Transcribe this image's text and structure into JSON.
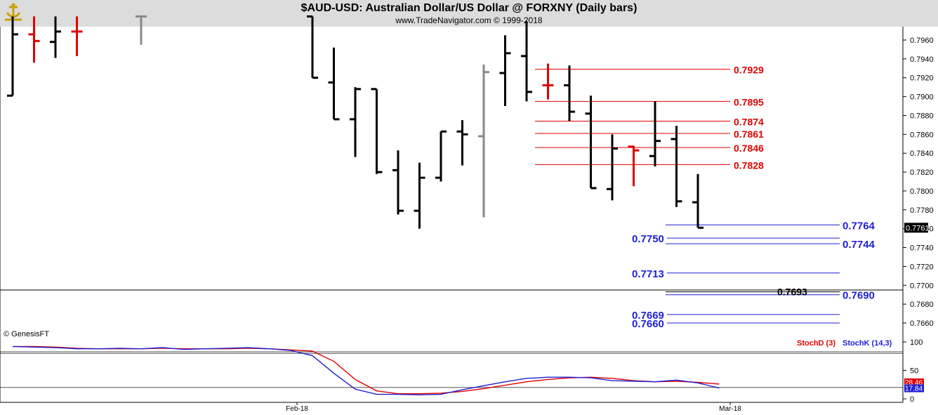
{
  "header": {
    "title": "$AUD-USD:  Australian Dollar/US Dollar @ FORXNY  (Daily bars)",
    "subtitle": "www.TradeNavigator.com © 1999-2018"
  },
  "chart_data": [
    {
      "type": "ohlc",
      "title": "$AUD-USD:  Australian Dollar/US Dollar @ FORXNY  (Daily bars)",
      "ylim": [
        0.7645,
        0.798
      ],
      "y_ticks": [
        "0.7960",
        "0.7940",
        "0.7920",
        "0.7900",
        "0.7880",
        "0.7860",
        "0.7840",
        "0.7820",
        "0.7800",
        "0.7780",
        "0.7760",
        "0.7740",
        "0.7720",
        "0.7700",
        "0.7680",
        "0.7660"
      ],
      "x_ticks": [
        "Feb-18",
        "Mar-18"
      ],
      "last_price": "0.7761",
      "bars": [
        {
          "i": 0,
          "h": 0.7985,
          "l": 0.7901,
          "o": 0.7901,
          "c": 0.7966,
          "color": "#000000"
        },
        {
          "i": 1,
          "h": 0.7985,
          "l": 0.7936,
          "o": 0.7966,
          "c": 0.7959,
          "color": "#e00000"
        },
        {
          "i": 2,
          "h": 0.7985,
          "l": 0.7941,
          "o": 0.7958,
          "c": 0.7969,
          "color": "#000000"
        },
        {
          "i": 3,
          "h": 0.7985,
          "l": 0.7943,
          "o": 0.7969,
          "c": 0.7969,
          "color": "#e00000"
        },
        {
          "i": 6,
          "h": 0.7985,
          "l": 0.7955,
          "o": 0.7985,
          "c": 0.7985,
          "color": "#888888"
        },
        {
          "i": 14,
          "h": 0.7985,
          "l": 0.792,
          "o": 0.7985,
          "c": 0.792,
          "color": "#000000"
        },
        {
          "i": 15,
          "h": 0.7952,
          "l": 0.7876,
          "o": 0.7915,
          "c": 0.7876,
          "color": "#000000"
        },
        {
          "i": 16,
          "h": 0.791,
          "l": 0.7836,
          "o": 0.7876,
          "c": 0.7908,
          "color": "#000000"
        },
        {
          "i": 17,
          "h": 0.7908,
          "l": 0.7818,
          "o": 0.7908,
          "c": 0.782,
          "color": "#000000"
        },
        {
          "i": 18,
          "h": 0.7843,
          "l": 0.7775,
          "o": 0.7822,
          "c": 0.7779,
          "color": "#000000"
        },
        {
          "i": 19,
          "h": 0.783,
          "l": 0.776,
          "o": 0.7779,
          "c": 0.7814,
          "color": "#000000"
        },
        {
          "i": 20,
          "h": 0.7863,
          "l": 0.781,
          "o": 0.7814,
          "c": 0.7863,
          "color": "#000000"
        },
        {
          "i": 21,
          "h": 0.7875,
          "l": 0.7827,
          "o": 0.7863,
          "c": 0.786,
          "color": "#000000"
        },
        {
          "i": 22,
          "h": 0.7934,
          "l": 0.7772,
          "o": 0.7858,
          "c": 0.7926,
          "color": "#888888"
        },
        {
          "i": 23,
          "h": 0.7965,
          "l": 0.789,
          "o": 0.7925,
          "c": 0.7946,
          "color": "#000000"
        },
        {
          "i": 24,
          "h": 0.798,
          "l": 0.7895,
          "o": 0.7943,
          "c": 0.7905,
          "color": "#000000"
        },
        {
          "i": 25,
          "h": 0.7935,
          "l": 0.7897,
          "o": 0.7912,
          "c": 0.7912,
          "color": "#e00000"
        },
        {
          "i": 26,
          "h": 0.7933,
          "l": 0.7874,
          "o": 0.7912,
          "c": 0.7884,
          "color": "#000000"
        },
        {
          "i": 27,
          "h": 0.7901,
          "l": 0.7803,
          "o": 0.7882,
          "c": 0.7803,
          "color": "#000000"
        },
        {
          "i": 28,
          "h": 0.786,
          "l": 0.779,
          "o": 0.7802,
          "c": 0.7845,
          "color": "#000000"
        },
        {
          "i": 29,
          "h": 0.7848,
          "l": 0.7805,
          "o": 0.7847,
          "c": 0.7843,
          "color": "#e00000"
        },
        {
          "i": 30,
          "h": 0.7895,
          "l": 0.7826,
          "o": 0.7837,
          "c": 0.7853,
          "color": "#000000"
        },
        {
          "i": 31,
          "h": 0.7869,
          "l": 0.7783,
          "o": 0.7855,
          "c": 0.7789,
          "color": "#000000"
        },
        {
          "i": 32,
          "h": 0.7818,
          "l": 0.7761,
          "o": 0.7788,
          "c": 0.7761,
          "color": "#000000"
        }
      ],
      "levels_red": [
        "0.7929",
        "0.7895",
        "0.7874",
        "0.7861",
        "0.7846",
        "0.7828"
      ],
      "levels_blue_right": [
        "0.7764",
        "0.7744",
        "0.7690"
      ],
      "levels_blue_left": [
        "0.7750",
        "0.7713",
        "0.7669",
        "0.7660"
      ],
      "level_black": "0.7693",
      "horizontal_line": 0.7695
    },
    {
      "type": "line",
      "title": "",
      "ylim": [
        0,
        100
      ],
      "y_ticks": [
        "100",
        "50",
        "0"
      ],
      "reference_lines": [
        80,
        20
      ],
      "series": [
        {
          "name": "StochD (3)",
          "color": "#e00000",
          "values": [
            92,
            92,
            91,
            89,
            88,
            88,
            88,
            89,
            88,
            88,
            88,
            89,
            88,
            86,
            84,
            66,
            34,
            14,
            9,
            9,
            10,
            13,
            18,
            24,
            30,
            34,
            37,
            38,
            36,
            32,
            30,
            31,
            29,
            26
          ]
        },
        {
          "name": "StochK (14,3)",
          "color": "#1f1fd6",
          "values": [
            92,
            91,
            90,
            88,
            88,
            89,
            88,
            90,
            87,
            88,
            89,
            90,
            88,
            85,
            76,
            45,
            17,
            8,
            8,
            7,
            8,
            16,
            23,
            30,
            36,
            38,
            38,
            37,
            32,
            31,
            30,
            33,
            28,
            19
          ]
        }
      ],
      "last_values": [
        "28.46",
        "17.84"
      ],
      "watermark": "© GenesisFT"
    }
  ]
}
